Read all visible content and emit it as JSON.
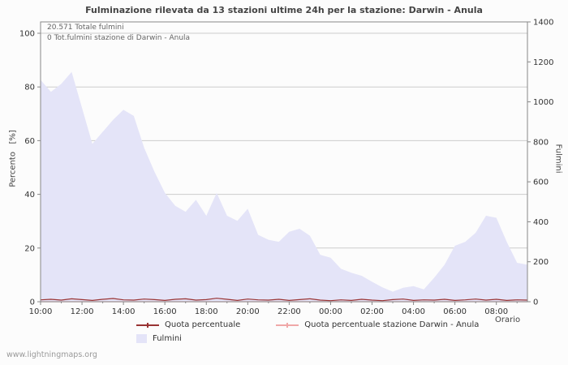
{
  "title": "Fulminazione rilevata da 13 stazioni ultime 24h per la stazione: Darwin - Anula",
  "annotations": {
    "total": "20.571 Totale fulmini",
    "station_total": "0 Tot.fulmini stazione di Darwin - Anula"
  },
  "axes": {
    "left_label": "Percento   [%]",
    "right_label": "Fulmini",
    "x_label": "Orario"
  },
  "legend": {
    "items": [
      {
        "label": "Quota percentuale",
        "marker": "line",
        "color": "#993333"
      },
      {
        "label": "Quota percentuale stazione Darwin - Anula",
        "marker": "line",
        "color": "#f0a8a8"
      },
      {
        "label": "Fulmini",
        "marker": "box",
        "color": "#e4e4f8"
      }
    ]
  },
  "footer": "www.lightningmaps.org",
  "colors": {
    "background": "#fcfcfc",
    "grid": "#cccccc",
    "frame": "#888888",
    "area": "#e4e4f8",
    "percent_line": "#993333",
    "station_line": "#f0a8a8"
  },
  "chart_data": {
    "type": "area",
    "x": [
      "10:00",
      "10:30",
      "11:00",
      "11:30",
      "12:00",
      "12:30",
      "13:00",
      "13:30",
      "14:00",
      "14:30",
      "15:00",
      "15:30",
      "16:00",
      "16:30",
      "17:00",
      "17:30",
      "18:00",
      "18:30",
      "19:00",
      "19:30",
      "20:00",
      "20:30",
      "21:00",
      "21:30",
      "22:00",
      "22:30",
      "23:00",
      "23:30",
      "00:00",
      "00:30",
      "01:00",
      "01:30",
      "02:00",
      "02:30",
      "03:00",
      "03:30",
      "04:00",
      "04:30",
      "05:00",
      "05:30",
      "06:00",
      "06:30",
      "07:00",
      "07:30",
      "08:00",
      "08:30",
      "09:00",
      "09:30"
    ],
    "x_tick_labels": [
      "10:00",
      "12:00",
      "14:00",
      "16:00",
      "18:00",
      "20:00",
      "22:00",
      "00:00",
      "02:00",
      "04:00",
      "06:00",
      "08:00"
    ],
    "left_axis": {
      "label": "Percento [%]",
      "ticks": [
        0,
        20,
        40,
        60,
        80,
        100
      ],
      "max": 100
    },
    "right_axis": {
      "label": "Fulmini",
      "ticks": [
        0,
        200,
        400,
        600,
        800,
        1000,
        1200,
        1400
      ],
      "max": 1400
    },
    "series": [
      {
        "name": "Fulmini",
        "type": "area",
        "axis": "right",
        "color": "#e4e4f8",
        "values": [
          1110,
          1050,
          1090,
          1150,
          970,
          790,
          850,
          910,
          960,
          930,
          770,
          650,
          545,
          480,
          450,
          510,
          430,
          545,
          430,
          405,
          465,
          335,
          310,
          300,
          350,
          365,
          330,
          235,
          220,
          165,
          145,
          130,
          100,
          72,
          50,
          70,
          78,
          62,
          120,
          185,
          280,
          300,
          345,
          430,
          420,
          300,
          195,
          185
        ]
      },
      {
        "name": "Quota percentuale stazione Darwin - Anula",
        "type": "line",
        "axis": "left",
        "color": "#f0a8a8",
        "constant": 0
      },
      {
        "name": "Quota percentuale",
        "type": "line",
        "axis": "left",
        "color": "#993333",
        "values": [
          0.7,
          0.9,
          0.6,
          1.1,
          0.8,
          0.5,
          0.9,
          1.2,
          0.7,
          0.6,
          1.0,
          0.8,
          0.5,
          0.9,
          1.1,
          0.6,
          0.8,
          1.3,
          0.9,
          0.5,
          1.0,
          0.7,
          0.6,
          0.9,
          0.5,
          0.8,
          1.1,
          0.6,
          0.4,
          0.7,
          0.5,
          0.9,
          0.6,
          0.4,
          0.8,
          1.0,
          0.5,
          0.7,
          0.6,
          0.9,
          0.5,
          0.7,
          1.0,
          0.6,
          0.9,
          0.5,
          0.7,
          0.6
        ]
      }
    ]
  }
}
